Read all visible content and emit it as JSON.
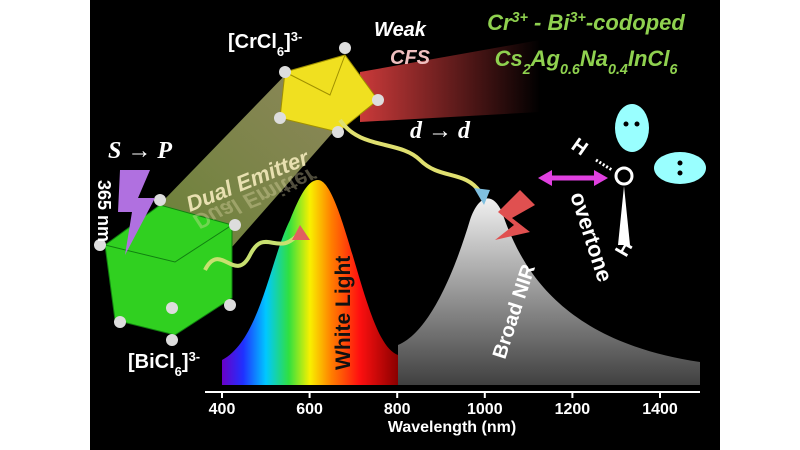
{
  "title": {
    "line1": [
      "Cr",
      "3+",
      " - Bi",
      "3+",
      "-codoped"
    ],
    "line2": [
      "Cs",
      "2",
      "Ag",
      "0.6",
      "Na",
      "0.4",
      "InCl",
      "6"
    ]
  },
  "cr_complex": [
    "[CrCl",
    "6",
    "]",
    "3-"
  ],
  "bi_complex": [
    "[BiCl",
    "6",
    "]",
    "3-"
  ],
  "field": [
    "Weak",
    "CFS"
  ],
  "transitions": {
    "sp": "S → P",
    "dd": "d → d"
  },
  "excitation": "365 nm",
  "dual_emitter": "Dual Emitter",
  "white_light": "White Light",
  "broad_nir": "Broad NIR",
  "overtone": "overtone",
  "molecule": [
    "H",
    "O",
    "H"
  ],
  "axis": {
    "ticks": [
      400,
      600,
      800,
      1000,
      1200,
      1400
    ],
    "label": "Wavelength (nm)"
  }
}
